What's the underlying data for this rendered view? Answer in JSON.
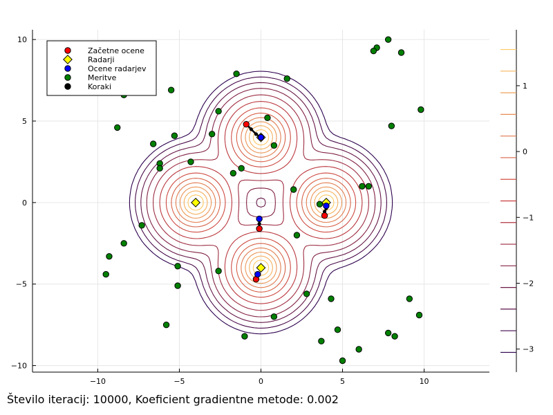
{
  "caption": "Število iteracij: 10000, Koeficient gradientne metode: 0.002",
  "colors": {
    "start": "#ff0000",
    "radar": "#ffff00",
    "estimate": "#0000ff",
    "measurement": "#008000",
    "steps": "#000000",
    "contour_low": "#2b004d",
    "contour_high": "#ffe680"
  },
  "chart_data": {
    "type": "scatter",
    "title": "",
    "xlabel": "",
    "ylabel": "",
    "xlim": [
      -14,
      14
    ],
    "ylim": [
      -10.4,
      10.6
    ],
    "xticks": [
      -10,
      -5,
      0,
      5,
      10
    ],
    "yticks": [
      -10,
      -5,
      0,
      5,
      10
    ],
    "grid": true,
    "legend_position": "top-left",
    "legend": [
      "Začetne ocene",
      "Radarji",
      "Ocene radarjev",
      "Meritve",
      "Koraki"
    ],
    "series": [
      {
        "name": "Začetne ocene",
        "marker": "circle",
        "color": "#ff0000",
        "points": [
          [
            -0.9,
            4.8
          ],
          [
            -0.1,
            -1.6
          ],
          [
            -0.3,
            -4.7
          ],
          [
            3.9,
            -0.8
          ]
        ]
      },
      {
        "name": "Radarji",
        "marker": "diamond",
        "color": "#ffff00",
        "points": [
          [
            0,
            4
          ],
          [
            0,
            -4
          ],
          [
            -4,
            0
          ],
          [
            4,
            0
          ]
        ]
      },
      {
        "name": "Ocene radarjev",
        "marker": "circle",
        "color": "#0000ff",
        "points": [
          [
            0,
            4
          ],
          [
            -0.1,
            -1.0
          ],
          [
            -0.2,
            -4.4
          ],
          [
            4.0,
            -0.2
          ]
        ]
      },
      {
        "name": "Meritve",
        "marker": "circle",
        "color": "#008000",
        "points": [
          [
            -8.4,
            6.6
          ],
          [
            -8.8,
            4.6
          ],
          [
            -5.5,
            6.9
          ],
          [
            -1.5,
            7.9
          ],
          [
            1.6,
            7.6
          ],
          [
            7.8,
            10.0
          ],
          [
            7.1,
            9.5
          ],
          [
            6.9,
            9.3
          ],
          [
            8.6,
            9.2
          ],
          [
            9.8,
            5.7
          ],
          [
            8.0,
            4.7
          ],
          [
            -2.6,
            5.6
          ],
          [
            0.4,
            5.2
          ],
          [
            -6.6,
            3.6
          ],
          [
            -5.3,
            4.1
          ],
          [
            -3.0,
            4.2
          ],
          [
            0.8,
            3.5
          ],
          [
            -6.2,
            2.4
          ],
          [
            -6.2,
            2.1
          ],
          [
            -4.3,
            2.5
          ],
          [
            -1.2,
            2.1
          ],
          [
            -1.7,
            1.8
          ],
          [
            2.0,
            0.8
          ],
          [
            6.2,
            1.0
          ],
          [
            6.6,
            1.0
          ],
          [
            3.6,
            -0.1
          ],
          [
            -7.3,
            -1.4
          ],
          [
            2.2,
            -2.0
          ],
          [
            -8.4,
            -2.5
          ],
          [
            -9.3,
            -3.3
          ],
          [
            -9.5,
            -4.4
          ],
          [
            -5.1,
            -3.9
          ],
          [
            -2.6,
            -4.2
          ],
          [
            -5.1,
            -5.1
          ],
          [
            2.8,
            -5.6
          ],
          [
            4.3,
            -5.9
          ],
          [
            9.1,
            -5.9
          ],
          [
            9.7,
            -6.9
          ],
          [
            0.8,
            -7.0
          ],
          [
            -5.8,
            -7.5
          ],
          [
            4.7,
            -7.8
          ],
          [
            7.8,
            -8.0
          ],
          [
            8.2,
            -8.2
          ],
          [
            -1.0,
            -8.2
          ],
          [
            3.7,
            -8.5
          ],
          [
            6.0,
            -9.0
          ],
          [
            5.0,
            -9.7
          ]
        ]
      },
      {
        "name": "Koraki",
        "type": "line",
        "color": "#000000",
        "paths": [
          [
            [
              -0.9,
              4.8
            ],
            [
              -0.6,
              4.5
            ],
            [
              -0.3,
              4.2
            ],
            [
              0,
              4
            ]
          ],
          [
            [
              -0.1,
              -1.6
            ],
            [
              -0.1,
              -1.3
            ],
            [
              -0.1,
              -1.0
            ]
          ],
          [
            [
              -0.3,
              -4.7
            ],
            [
              -0.25,
              -4.55
            ],
            [
              -0.2,
              -4.4
            ]
          ],
          [
            [
              3.9,
              -0.8
            ],
            [
              3.9,
              -0.55
            ],
            [
              4.0,
              -0.35
            ],
            [
              4.0,
              -0.2
            ]
          ]
        ]
      }
    ],
    "contour": {
      "function": "sum of gaussian peaks at the four radar positions",
      "colorbar_ticks": [
        1,
        0,
        -1,
        -2,
        -3
      ],
      "colorbar_range": [
        -3.35,
        1.85
      ]
    }
  }
}
